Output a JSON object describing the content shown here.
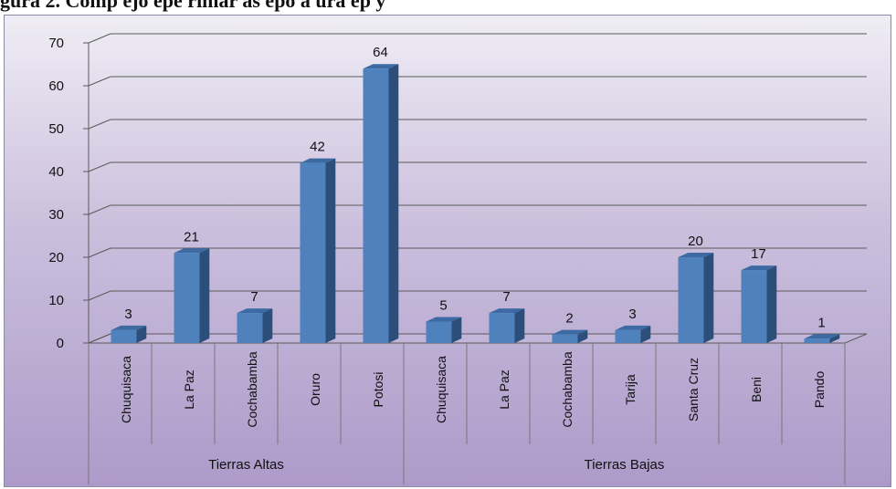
{
  "page_title": "gura 2. Comp  ejo  epe   rimar  as  epo              a   ura    ep         y",
  "chart_data": {
    "type": "bar",
    "title": "",
    "xlabel": "",
    "ylabel": "",
    "ylim": [
      0,
      70
    ],
    "yticks": [
      0,
      10,
      20,
      30,
      40,
      50,
      60,
      70
    ],
    "grid": true,
    "legend": "none",
    "style": "3d-column",
    "colors": {
      "bar_front": "#4f81bd",
      "bar_side": "#2c4e7a",
      "bar_top": "#3d6aa3",
      "grid": "#5a5a5a"
    },
    "groups": [
      {
        "name": "Tierras Altas",
        "categories": [
          "Chuquisaca",
          "La Paz",
          "Cochabamba",
          "Oruro",
          "Potosi"
        ],
        "values": [
          3,
          21,
          7,
          42,
          64
        ]
      },
      {
        "name": "Tierras Bajas",
        "categories": [
          "Chuquisaca",
          "La Paz",
          "Cochabamba",
          "Tarija",
          "Santa Cruz",
          "Beni",
          "Pando"
        ],
        "values": [
          5,
          7,
          2,
          3,
          20,
          17,
          1
        ]
      }
    ]
  }
}
